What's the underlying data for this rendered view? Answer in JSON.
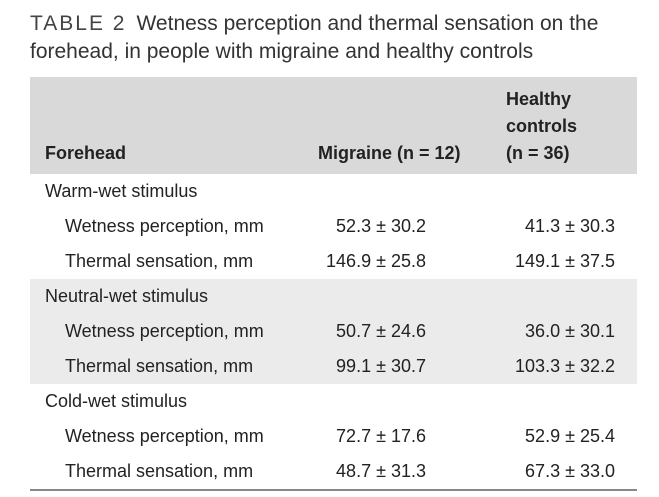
{
  "caption": {
    "label": "TABLE 2",
    "text": "Wetness perception and thermal sensation on the forehead, in people with migraine and healthy controls"
  },
  "table": {
    "headers": {
      "forehead": "Forehead",
      "migraine": "Migraine (n = 12)",
      "healthy_line1": "Healthy",
      "healthy_line2": "controls",
      "healthy_line3": "(n = 36)"
    },
    "sections": [
      {
        "title": "Warm-wet stimulus",
        "rows": [
          {
            "label": "Wetness perception, mm",
            "migraine": "52.3 ± 30.2",
            "healthy": "41.3 ± 30.3"
          },
          {
            "label": "Thermal sensation, mm",
            "migraine": "146.9 ± 25.8",
            "healthy": "149.1 ± 37.5"
          }
        ]
      },
      {
        "title": "Neutral-wet stimulus",
        "rows": [
          {
            "label": "Wetness perception, mm",
            "migraine": "50.7 ± 24.6",
            "healthy": "36.0 ± 30.1"
          },
          {
            "label": "Thermal sensation, mm",
            "migraine": "99.1 ± 30.7",
            "healthy": "103.3 ± 32.2"
          }
        ]
      },
      {
        "title": "Cold-wet stimulus",
        "rows": [
          {
            "label": "Wetness perception, mm",
            "migraine": "72.7 ± 17.6",
            "healthy": "52.9 ± 25.4"
          },
          {
            "label": "Thermal sensation, mm",
            "migraine": "48.7 ± 31.3",
            "healthy": "67.3 ± 33.0"
          }
        ]
      }
    ]
  }
}
